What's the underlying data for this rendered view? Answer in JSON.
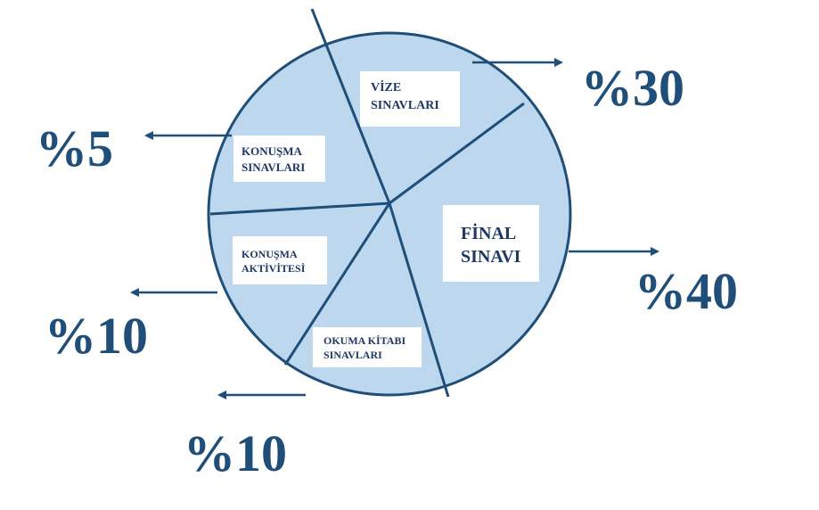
{
  "chart_data": {
    "type": "pie",
    "slices": [
      {
        "label_lines": [
          "VİZE",
          "SINAVLARI"
        ],
        "value": 30,
        "value_label": "%30"
      },
      {
        "label_lines": [
          "FİNAL",
          "SINAVI"
        ],
        "value": 40,
        "value_label": "%40"
      },
      {
        "label_lines": [
          "OKUMA KİTABI",
          "SINAVLARI"
        ],
        "value": 10,
        "value_label": "%10"
      },
      {
        "label_lines": [
          "KONUŞMA",
          "AKTİVİTESİ"
        ],
        "value": 10,
        "value_label": "%10"
      },
      {
        "label_lines": [
          "KONUŞMA",
          "SINAVLARI"
        ],
        "value": 5,
        "value_label": "%5"
      }
    ],
    "colors": {
      "fill": "#bdd7ee",
      "stroke": "#1f4e79",
      "text": "#1f4e79"
    }
  }
}
